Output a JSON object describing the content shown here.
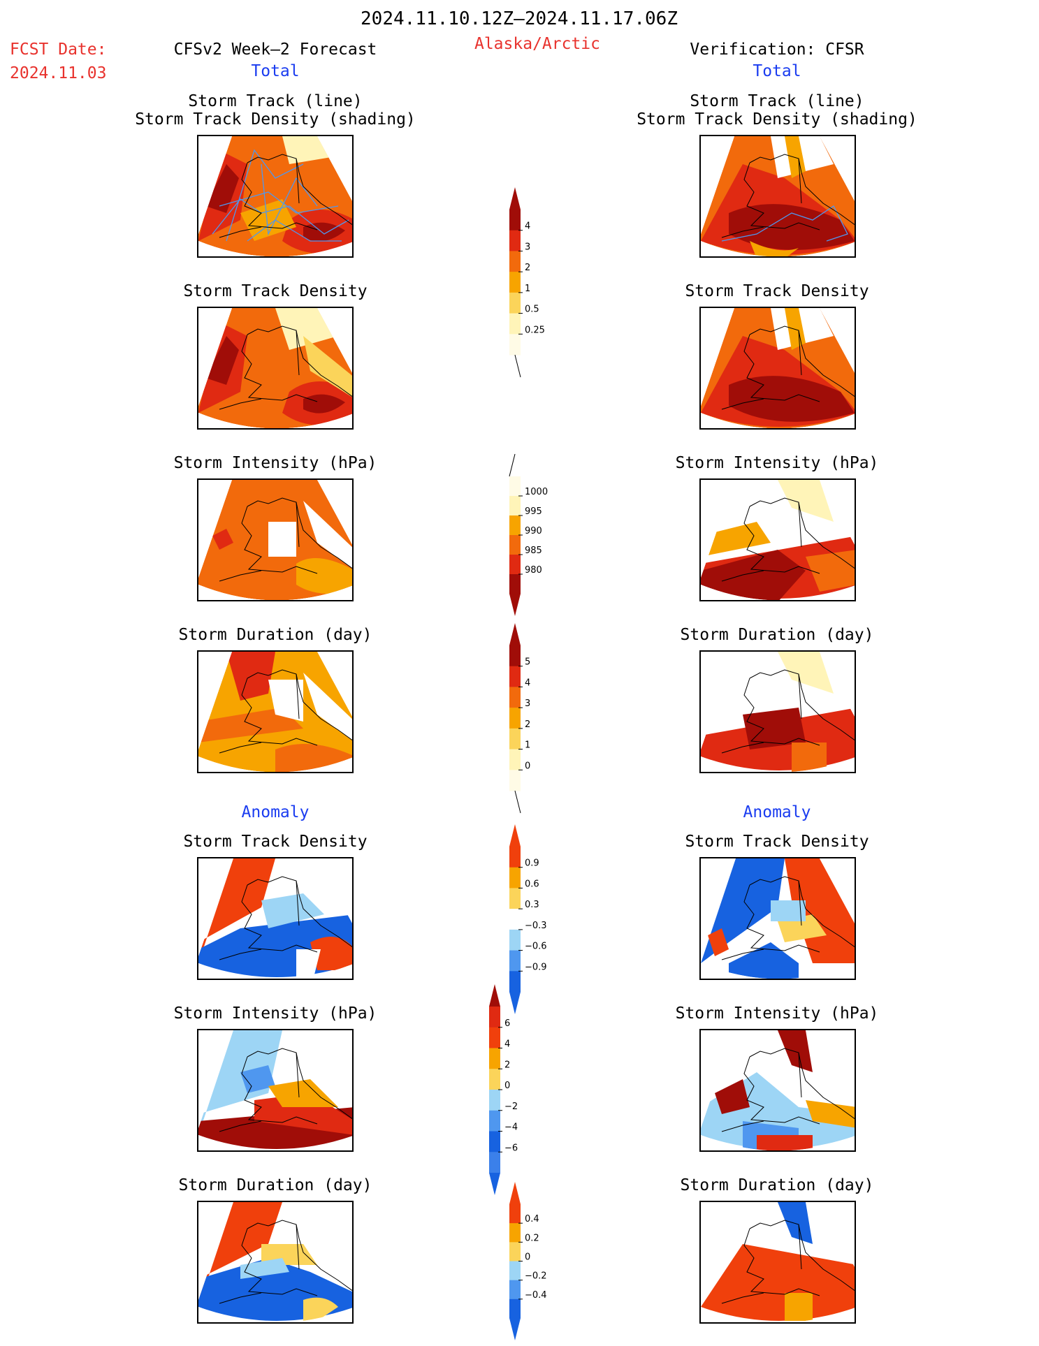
{
  "header": {
    "date_range": "2024.11.10.12Z–2024.11.17.06Z",
    "fcst_label": "FCST Date:",
    "fcst_date": "2024.11.03",
    "left_title": "CFSv2 Week–2 Forecast",
    "region": "Alaska/Arctic",
    "right_title": "Verification: CFSR",
    "left_total": "Total",
    "right_total": "Total",
    "left_anomaly": "Anomaly",
    "right_anomaly": "Anomaly"
  },
  "colors": {
    "ramp_warm": [
      "#fff4b8",
      "#fbd45a",
      "#f7a400",
      "#f26a0c",
      "#e02a12",
      "#a00d08"
    ],
    "ramp_anom": [
      "#1762e0",
      "#4f97ef",
      "#9dd5f5",
      "#ffffff",
      "#fbd45a",
      "#f7a400",
      "#f0400c"
    ],
    "track_line": "#4f97ef"
  },
  "panels": {
    "track_line_title_1": "Storm Track (line)",
    "track_line_title_2": "Storm Track Density (shading)",
    "track_density": "Storm Track Density",
    "intensity": "Storm Intensity (hPa)",
    "duration": "Storm Duration (day)"
  },
  "chart_data": [
    {
      "type": "heatmap",
      "title": "Storm Track (line) / Storm Track Density (shading)",
      "dataset": "CFSv2 Week-2 Forecast, Total",
      "colorbar": {
        "levels": [
          0.25,
          0.5,
          1,
          2,
          3,
          4
        ]
      }
    },
    {
      "type": "heatmap",
      "title": "Storm Track (line) / Storm Track Density (shading)",
      "dataset": "Verification: CFSR, Total",
      "colorbar": {
        "levels": [
          0.25,
          0.5,
          1,
          2,
          3,
          4
        ]
      }
    },
    {
      "type": "heatmap",
      "title": "Storm Track Density",
      "dataset": "CFSv2 Week-2 Forecast, Total",
      "colorbar": {
        "levels": [
          0.25,
          0.5,
          1,
          2,
          3,
          4
        ]
      }
    },
    {
      "type": "heatmap",
      "title": "Storm Track Density",
      "dataset": "Verification: CFSR, Total",
      "colorbar": {
        "levels": [
          0.25,
          0.5,
          1,
          2,
          3,
          4
        ]
      }
    },
    {
      "type": "heatmap",
      "title": "Storm Intensity (hPa)",
      "dataset": "CFSv2 Week-2 Forecast, Total",
      "colorbar": {
        "levels": [
          1000,
          995,
          990,
          985,
          980
        ]
      }
    },
    {
      "type": "heatmap",
      "title": "Storm Intensity (hPa)",
      "dataset": "Verification: CFSR, Total",
      "colorbar": {
        "levels": [
          1000,
          995,
          990,
          985,
          980
        ]
      }
    },
    {
      "type": "heatmap",
      "title": "Storm Duration (day)",
      "dataset": "CFSv2 Week-2 Forecast, Total",
      "colorbar": {
        "levels": [
          0,
          1,
          2,
          3,
          4,
          5
        ]
      }
    },
    {
      "type": "heatmap",
      "title": "Storm Duration (day)",
      "dataset": "Verification: CFSR, Total",
      "colorbar": {
        "levels": [
          0,
          1,
          2,
          3,
          4,
          5
        ]
      }
    },
    {
      "type": "heatmap",
      "title": "Storm Track Density",
      "dataset": "CFSv2 Week-2 Forecast, Anomaly",
      "colorbar": {
        "levels": [
          -0.9,
          -0.6,
          -0.3,
          0.3,
          0.6,
          0.9
        ]
      }
    },
    {
      "type": "heatmap",
      "title": "Storm Track Density",
      "dataset": "Verification: CFSR, Anomaly",
      "colorbar": {
        "levels": [
          -0.9,
          -0.6,
          -0.3,
          0.3,
          0.6,
          0.9
        ]
      }
    },
    {
      "type": "heatmap",
      "title": "Storm Intensity (hPa)",
      "dataset": "CFSv2 Week-2 Forecast, Anomaly",
      "colorbar": {
        "levels": [
          -6,
          -4,
          -2,
          0,
          2,
          4,
          6
        ]
      }
    },
    {
      "type": "heatmap",
      "title": "Storm Intensity (hPa)",
      "dataset": "Verification: CFSR, Anomaly",
      "colorbar": {
        "levels": [
          -6,
          -4,
          -2,
          0,
          2,
          4,
          6
        ]
      }
    },
    {
      "type": "heatmap",
      "title": "Storm Duration (day)",
      "dataset": "CFSv2 Week-2 Forecast, Anomaly",
      "colorbar": {
        "levels": [
          -0.4,
          -0.2,
          0,
          0.2,
          0.4
        ]
      }
    },
    {
      "type": "heatmap",
      "title": "Storm Duration (day)",
      "dataset": "Verification: CFSR, Anomaly",
      "colorbar": {
        "levels": [
          -0.4,
          -0.2,
          0,
          0.2,
          0.4
        ]
      }
    }
  ],
  "colorbars": {
    "density": [
      "4",
      "3",
      "2",
      "1",
      "0.5",
      "0.25"
    ],
    "intensity": [
      "1000",
      "995",
      "990",
      "985",
      "980"
    ],
    "duration": [
      "5",
      "4",
      "3",
      "2",
      "1",
      "0"
    ],
    "density_anom": [
      "0.9",
      "0.6",
      "0.3",
      "−0.3",
      "−0.6",
      "−0.9"
    ],
    "intensity_anom": [
      "6",
      "4",
      "2",
      "0",
      "−2",
      "−4",
      "−6"
    ],
    "duration_anom": [
      "0.4",
      "0.2",
      "0",
      "−0.2",
      "−0.4"
    ]
  }
}
